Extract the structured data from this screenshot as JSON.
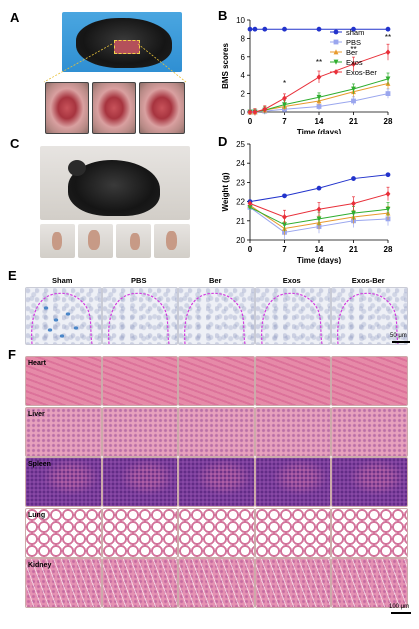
{
  "panels": {
    "A": "A",
    "B": "B",
    "C": "C",
    "D": "D",
    "E": "E",
    "F": "F"
  },
  "chart_data": [
    {
      "type": "line",
      "ylabel": "BMS scores",
      "xlabel": "Time (days)",
      "x": [
        0,
        1,
        3,
        7,
        14,
        21,
        28
      ],
      "xticks": [
        0,
        7,
        14,
        21,
        28
      ],
      "yticks": [
        0,
        2,
        4,
        6,
        8,
        10
      ],
      "xlim": [
        0,
        28
      ],
      "ylim": [
        0,
        10
      ],
      "legend_position": "top-right",
      "series": [
        {
          "name": "sham",
          "color": "#2233cc",
          "marker": "circle",
          "values": [
            9,
            9,
            9,
            9,
            9,
            9,
            9
          ]
        },
        {
          "name": "PBS",
          "color": "#9aa6ee",
          "marker": "square",
          "values": [
            0,
            0,
            0.1,
            0.3,
            0.6,
            1.2,
            2.0
          ]
        },
        {
          "name": "Ber",
          "color": "#e89a2c",
          "marker": "triangle-up",
          "values": [
            0,
            0,
            0.2,
            0.6,
            1.2,
            2.2,
            3.1
          ]
        },
        {
          "name": "Exos",
          "color": "#2fae2f",
          "marker": "triangle-down",
          "values": [
            0,
            0,
            0.2,
            0.8,
            1.6,
            2.5,
            3.6
          ]
        },
        {
          "name": "Exos-Ber",
          "color": "#e8303a",
          "marker": "diamond",
          "values": [
            0,
            0,
            0.3,
            1.5,
            3.8,
            5.2,
            6.5
          ]
        }
      ],
      "annotations": [
        {
          "x": 7,
          "text": "*"
        },
        {
          "x": 14,
          "text": "**"
        },
        {
          "x": 21,
          "text": "**"
        },
        {
          "x": 28,
          "text": "**"
        }
      ]
    },
    {
      "type": "line",
      "ylabel": "Weight (g)",
      "xlabel": "Time (days)",
      "x": [
        0,
        7,
        14,
        21,
        28
      ],
      "xticks": [
        0,
        7,
        14,
        21,
        28
      ],
      "yticks": [
        20,
        21,
        22,
        23,
        24,
        25
      ],
      "xlim": [
        0,
        28
      ],
      "ylim": [
        20,
        25
      ],
      "series": [
        {
          "name": "sham",
          "color": "#2233cc",
          "marker": "circle",
          "values": [
            22.0,
            22.3,
            22.7,
            23.2,
            23.4
          ]
        },
        {
          "name": "PBS",
          "color": "#9aa6ee",
          "marker": "square",
          "values": [
            21.7,
            20.4,
            20.7,
            21.0,
            21.1
          ]
        },
        {
          "name": "Ber",
          "color": "#e89a2c",
          "marker": "triangle-up",
          "values": [
            21.8,
            20.6,
            20.9,
            21.2,
            21.4
          ]
        },
        {
          "name": "Exos",
          "color": "#2fae2f",
          "marker": "triangle-down",
          "values": [
            21.7,
            20.8,
            21.1,
            21.4,
            21.6
          ]
        },
        {
          "name": "Exos-Ber",
          "color": "#e8303a",
          "marker": "diamond",
          "values": [
            21.9,
            21.2,
            21.6,
            21.9,
            22.4
          ]
        }
      ]
    }
  ],
  "panelE": {
    "columns": [
      "Sham",
      "PBS",
      "Ber",
      "Exos",
      "Exos-Ber"
    ],
    "scalebar": "50 μm"
  },
  "panelF": {
    "rows": [
      "Heart",
      "Liver",
      "Spleen",
      "Lung",
      "Kidney"
    ],
    "scalebar": "100 μm"
  }
}
